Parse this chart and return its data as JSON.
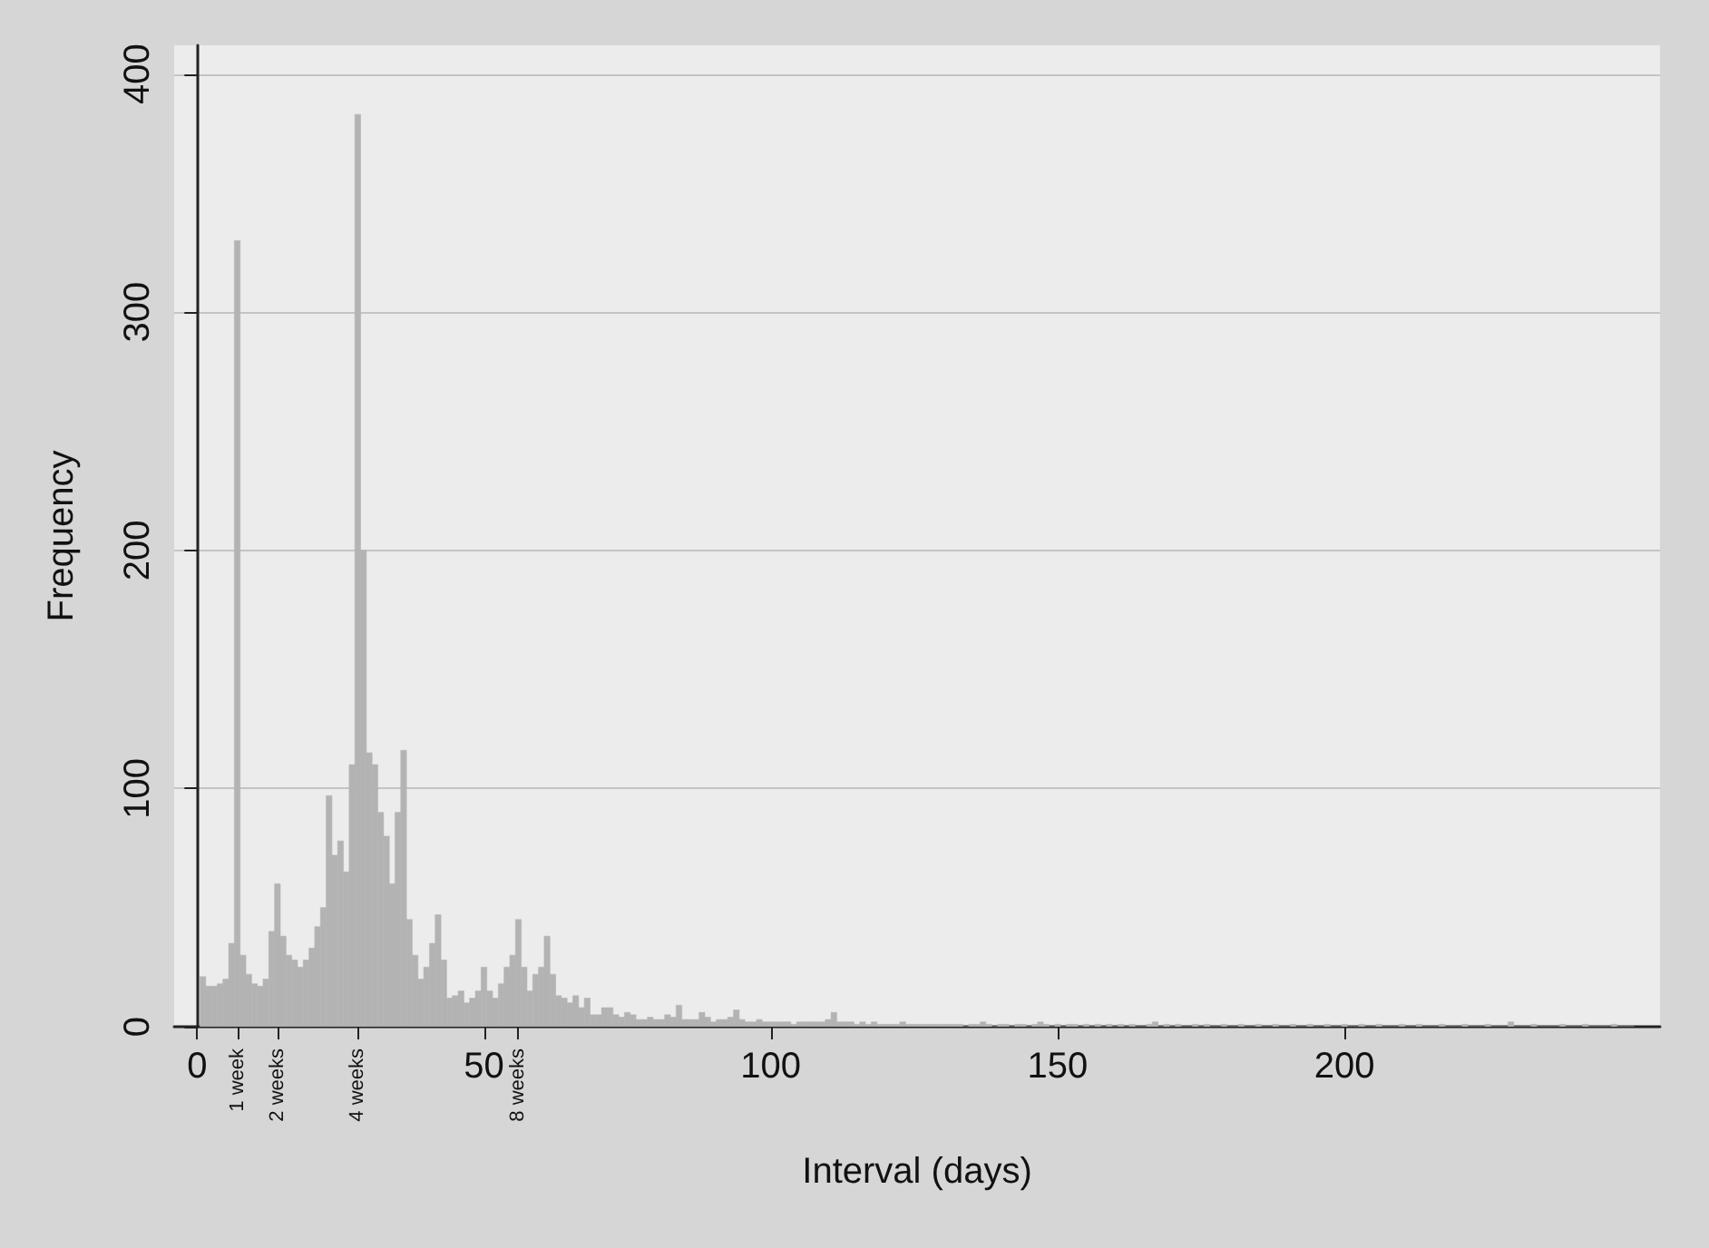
{
  "chart_data": {
    "type": "histogram",
    "xlabel": "Interval (days)",
    "ylabel": "Frequency",
    "bins": [
      0.5,
      1.5,
      2.5,
      3.5,
      4.5,
      5.5,
      6.5,
      7.5,
      8.5,
      9.5,
      10.5,
      11.5,
      12.5,
      13.5,
      14.5,
      15.5,
      16.5,
      17.5,
      18.5,
      19.5,
      20.5,
      21.5,
      22.5,
      23.5,
      24.5,
      25.5,
      26.5,
      27.5,
      28.5,
      29.5,
      30.5,
      31.5,
      32.5,
      33.5,
      34.5,
      35.5,
      36.5,
      37.5,
      38.5,
      39.5,
      40.5,
      41.5,
      42.5,
      43.5,
      44.5,
      45.5,
      46.5,
      47.5,
      48.5,
      49.5,
      50.5,
      51.5,
      52.5,
      53.5,
      54.5,
      55.5,
      56.5,
      57.5,
      58.5,
      59.5,
      60.5,
      61.5,
      62.5,
      63.5,
      64.5,
      65.5,
      66.5,
      67.5,
      68.5,
      69.5,
      70.5,
      71.5,
      72.5,
      73.5,
      74.5,
      75.5,
      76.5,
      77.5,
      78.5,
      79.5,
      80.5,
      81.5,
      82.5,
      83.5,
      84.5,
      85.5,
      86.5,
      87.5,
      88.5,
      89.5,
      90.5,
      91.5,
      92.5,
      93.5,
      94.5,
      95.5,
      96.5,
      97.5,
      98.5,
      99.5,
      100.5,
      101.5,
      102.5,
      103.5,
      104.5,
      105.5,
      106.5,
      107.5,
      108.5,
      109.5,
      110.5,
      111.5,
      112.5,
      113.5,
      114.5,
      115.5,
      116.5,
      117.5,
      118.5,
      119.5,
      120.5,
      121.5,
      122.5,
      123.5,
      124.5,
      125.5,
      126.5,
      127.5,
      128.5,
      129.5,
      130.5,
      131.5,
      132.5,
      133.5,
      134.5,
      135.5,
      136.5,
      137.5,
      138.5,
      139.5,
      140.5,
      141.5,
      142.5,
      143.5,
      144.5,
      145.5,
      146.5,
      147.5,
      148.5,
      149.5,
      150.5,
      151.5,
      152.5,
      153.5,
      154.5,
      155.5,
      156.5,
      157.5,
      158.5,
      159.5,
      160.5,
      161.5,
      162.5,
      163.5,
      164.5,
      165.5,
      166.5,
      167.5,
      168.5,
      169.5,
      170.5,
      171.5,
      172.5,
      173.5,
      174.5,
      175.5,
      176.5,
      177.5,
      178.5,
      179.5,
      180.5,
      181.5,
      182.5,
      183.5,
      184.5,
      185.5,
      186.5,
      187.5,
      188.5,
      189.5,
      190.5,
      191.5,
      192.5,
      193.5,
      194.5,
      195.5,
      196.5,
      197.5,
      198.5,
      199.5,
      200.5,
      201.5,
      202.5,
      203.5,
      204.5,
      205.5,
      206.5,
      207.5,
      208.5,
      209.5,
      210.5,
      211.5,
      212.5,
      213.5,
      214.5,
      215.5,
      216.5,
      217.5,
      218.5,
      219.5,
      220.5,
      221.5,
      222.5,
      223.5,
      224.5,
      225.5,
      226.5,
      227.5,
      228.5,
      229.5,
      230.5,
      231.5,
      232.5,
      233.5,
      234.5,
      235.5,
      236.5,
      237.5,
      238.5,
      239.5,
      240.5,
      241.5,
      242.5,
      243.5,
      244.5,
      245.5,
      246.5,
      247.5,
      248.5,
      249.5,
      250.5
    ],
    "values": [
      21,
      17,
      17,
      18,
      20,
      35,
      330,
      30,
      22,
      18,
      17,
      20,
      40,
      60,
      38,
      30,
      28,
      25,
      28,
      33,
      42,
      50,
      97,
      72,
      78,
      65,
      110,
      383,
      200,
      115,
      110,
      90,
      80,
      60,
      90,
      116,
      45,
      30,
      20,
      25,
      35,
      47,
      28,
      12,
      13,
      15,
      10,
      12,
      15,
      25,
      15,
      12,
      18,
      25,
      30,
      45,
      25,
      15,
      22,
      25,
      38,
      22,
      13,
      12,
      10,
      13,
      8,
      12,
      5,
      5,
      8,
      8,
      5,
      4,
      6,
      5,
      3,
      3,
      4,
      3,
      3,
      5,
      4,
      9,
      3,
      3,
      3,
      6,
      4,
      2,
      3,
      3,
      4,
      7,
      3,
      2,
      2,
      3,
      2,
      2,
      2,
      2,
      2,
      1,
      2,
      2,
      2,
      2,
      2,
      3,
      6,
      2,
      2,
      2,
      1,
      2,
      1,
      2,
      1,
      1,
      1,
      1,
      2,
      1,
      1,
      1,
      1,
      1,
      1,
      1,
      1,
      1,
      1,
      0,
      1,
      1,
      2,
      1,
      0,
      1,
      1,
      0,
      1,
      1,
      0,
      1,
      2,
      1,
      0,
      1,
      0,
      1,
      1,
      0,
      1,
      0,
      1,
      0,
      1,
      0,
      1,
      0,
      1,
      0,
      0,
      1,
      2,
      0,
      1,
      0,
      1,
      0,
      0,
      1,
      0,
      1,
      0,
      0,
      1,
      0,
      0,
      1,
      0,
      0,
      1,
      0,
      0,
      1,
      0,
      0,
      1,
      0,
      0,
      1,
      0,
      0,
      1,
      0,
      0,
      1,
      0,
      0,
      1,
      0,
      0,
      1,
      0,
      0,
      0,
      1,
      0,
      0,
      1,
      0,
      0,
      0,
      1,
      0,
      0,
      0,
      1,
      0,
      0,
      0,
      1,
      0,
      0,
      0,
      2,
      0,
      0,
      0,
      1,
      0,
      0,
      0,
      0,
      1,
      0,
      0,
      0,
      1,
      0,
      0,
      0,
      0,
      1,
      0,
      0,
      0
    ],
    "color": "#b3b3b3",
    "xlim": [
      -4,
      255
    ],
    "xticks": [
      0,
      {
        "value": 7,
        "label": null
      },
      {
        "value": 14,
        "label": null
      },
      {
        "value": 28,
        "label": null
      },
      50,
      {
        "value": 56,
        "label": null
      },
      100,
      150,
      200
    ],
    "annotations": [
      "1 week",
      "2 weeks",
      "4 weeks",
      "8 weeks"
    ],
    "ylim": [
      0,
      412
    ],
    "yticks": [
      0,
      100,
      200,
      300,
      400
    ],
    "grid": "y"
  }
}
